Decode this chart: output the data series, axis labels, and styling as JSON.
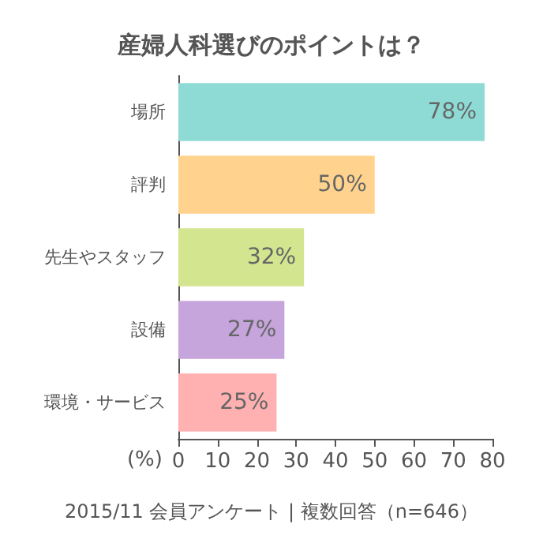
{
  "chart_data": {
    "type": "bar",
    "orientation": "horizontal",
    "title": "産婦人科選びのポイントは？",
    "categories": [
      "場所",
      "評判",
      "先生やスタッフ",
      "設備",
      "環境・サービス"
    ],
    "values": [
      78,
      50,
      32,
      27,
      25
    ],
    "colors": [
      "#8edbd6",
      "#ffd38e",
      "#d3e58f",
      "#c6a4dc",
      "#ffb0b0"
    ],
    "value_labels": [
      "78%",
      "50%",
      "32%",
      "27%",
      "25%"
    ],
    "xlabel": "(%)",
    "xlim": [
      0,
      80
    ],
    "xticks": [
      0,
      10,
      20,
      30,
      40,
      50,
      60,
      70,
      80
    ],
    "grid": false,
    "annotations": [
      "2015/11 会員アンケート | 複数回答（n=646）"
    ]
  }
}
